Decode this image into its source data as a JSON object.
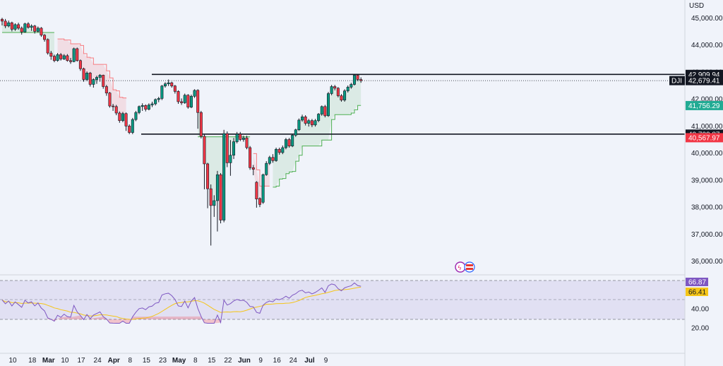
{
  "chart_data": {
    "type": "candlestick",
    "currency": "USD",
    "symbol": "DJI",
    "price_scale": {
      "ticks": [
        "45,000.00",
        "44,000.00",
        "43,000.00",
        "42,000.00",
        "41,000.00",
        "40,000.00",
        "39,000.00",
        "38,000.00",
        "37,000.00",
        "36,000.00"
      ],
      "tick_values": [
        45000,
        44000,
        43000,
        42000,
        41000,
        40000,
        39000,
        38000,
        37000,
        36000
      ],
      "range": [
        35600,
        45400
      ]
    },
    "time_axis": {
      "labels": [
        "10",
        "18",
        "Mar",
        "10",
        "17",
        "24",
        "Apr",
        "8",
        "15",
        "23",
        "May",
        "8",
        "15",
        "22",
        "Jun",
        "9",
        "16",
        "24",
        "Jul",
        "9"
      ],
      "bold": [
        "Mar",
        "Apr",
        "May",
        "Jun",
        "Jul"
      ],
      "bar_index": [
        0,
        6,
        11,
        16,
        21,
        26,
        31,
        36,
        41,
        46,
        51,
        56,
        61,
        66,
        71,
        76,
        81,
        86,
        91,
        96
      ]
    },
    "horizontal_levels": [
      {
        "value": 42909.94,
        "label": "42,909.94",
        "color": "#131722"
      },
      {
        "value": 40700.87,
        "label": "40,700.87",
        "color": "#131722"
      }
    ],
    "price_tags": [
      {
        "value": 42679.41,
        "label": "42,679.41",
        "name": "DJI",
        "color": "#131722"
      },
      {
        "value": 41756.29,
        "label": "41,756.29",
        "color": "#22ab94"
      },
      {
        "value": 40567.97,
        "label": "40,567.97",
        "color": "#f23645"
      }
    ],
    "candles": [
      [
        44950,
        44880,
        45000,
        44720
      ],
      [
        44880,
        44700,
        44960,
        44620
      ],
      [
        44700,
        44820,
        44900,
        44650
      ],
      [
        44820,
        44580,
        44860,
        44500
      ],
      [
        44580,
        44750,
        44800,
        44520
      ],
      [
        44750,
        44620,
        44820,
        44560
      ],
      [
        44620,
        44480,
        44680,
        44380
      ],
      [
        44480,
        44780,
        44820,
        44450
      ],
      [
        44780,
        44650,
        44840,
        44600
      ],
      [
        44650,
        44700,
        44760,
        44520
      ],
      [
        44700,
        44500,
        44740,
        44420
      ],
      [
        44500,
        44620,
        44680,
        44460
      ],
      [
        44620,
        44360,
        44660,
        44300
      ],
      [
        44360,
        44200,
        44400,
        44120
      ],
      [
        44200,
        43700,
        44240,
        43640
      ],
      [
        43700,
        43580,
        43780,
        43450
      ],
      [
        43580,
        43420,
        43640,
        43360
      ],
      [
        43420,
        43640,
        43700,
        43380
      ],
      [
        43640,
        43480,
        43700,
        43420
      ],
      [
        43480,
        43600,
        43660,
        43440
      ],
      [
        43600,
        43420,
        43660,
        43380
      ],
      [
        43420,
        43380,
        43520,
        43300
      ],
      [
        43380,
        43860,
        43900,
        43360
      ],
      [
        43860,
        43420,
        43900,
        43380
      ],
      [
        43420,
        43120,
        43460,
        43040
      ],
      [
        43120,
        42720,
        43160,
        42640
      ],
      [
        42720,
        42960,
        43020,
        42660
      ],
      [
        42960,
        42540,
        43000,
        42460
      ],
      [
        42540,
        42720,
        42760,
        42420
      ],
      [
        42720,
        42800,
        42860,
        42560
      ],
      [
        42800,
        42880,
        42920,
        42640
      ],
      [
        42880,
        42460,
        42900,
        42380
      ],
      [
        42460,
        42220,
        42520,
        42120
      ],
      [
        42220,
        41740,
        42260,
        41680
      ],
      [
        41740,
        41720,
        41820,
        41560
      ],
      [
        41720,
        41480,
        41780,
        41400
      ],
      [
        41480,
        41200,
        41540,
        41120
      ],
      [
        41200,
        41460,
        41520,
        41140
      ],
      [
        41460,
        41000,
        41500,
        40820
      ],
      [
        41000,
        40760,
        41060,
        40700
      ],
      [
        40760,
        41240,
        41300,
        40700
      ],
      [
        41240,
        41500,
        41560,
        41180
      ],
      [
        41500,
        41720,
        41760,
        41440
      ],
      [
        41720,
        41760,
        41840,
        41560
      ],
      [
        41760,
        41620,
        41800,
        41540
      ],
      [
        41620,
        41780,
        41840,
        41580
      ],
      [
        41780,
        41820,
        41900,
        41700
      ],
      [
        41820,
        41980,
        42020,
        41760
      ],
      [
        41980,
        42020,
        42080,
        41880
      ],
      [
        42020,
        42480,
        42520,
        41960
      ],
      [
        42480,
        42560,
        42620,
        42420
      ],
      [
        42560,
        42600,
        42720,
        42480
      ],
      [
        42600,
        42480,
        42640,
        42420
      ],
      [
        42480,
        42280,
        42520,
        42200
      ],
      [
        42280,
        41900,
        42320,
        41820
      ],
      [
        41900,
        41860,
        42020,
        41780
      ],
      [
        41860,
        42140,
        42200,
        41820
      ],
      [
        42140,
        41700,
        42180,
        41640
      ],
      [
        41700,
        42100,
        42160,
        41660
      ],
      [
        42100,
        42320,
        42360,
        42040
      ],
      [
        42320,
        41500,
        42360,
        40900
      ],
      [
        41500,
        40620,
        41560,
        40540
      ],
      [
        40620,
        39600,
        40680,
        38660
      ],
      [
        39600,
        38680,
        39640,
        37960
      ],
      [
        38680,
        38060,
        38840,
        36580
      ],
      [
        38060,
        38240,
        38440,
        37640
      ],
      [
        38240,
        39200,
        39340,
        37100
      ],
      [
        39200,
        37520,
        39260,
        37400
      ],
      [
        37520,
        40720,
        40860,
        37440
      ],
      [
        40720,
        39640,
        40800,
        39480
      ],
      [
        39640,
        39920,
        40480,
        39160
      ],
      [
        39920,
        40420,
        40560,
        39780
      ],
      [
        40420,
        40700,
        40780,
        40360
      ],
      [
        40700,
        40500,
        40780,
        40440
      ],
      [
        40500,
        40560,
        40640,
        40420
      ],
      [
        40560,
        40200,
        40640,
        40140
      ],
      [
        40200,
        39460,
        40260,
        39380
      ],
      [
        39460,
        39400,
        39560,
        39180
      ],
      [
        38920,
        38300,
        38960,
        37980
      ],
      [
        38320,
        38100,
        38360,
        38000
      ],
      [
        38180,
        39200,
        39240,
        38120
      ],
      [
        39200,
        39620,
        39700,
        39160
      ],
      [
        39620,
        39840,
        39900,
        39560
      ],
      [
        39840,
        39720,
        39960,
        39640
      ],
      [
        39720,
        40140,
        40200,
        39680
      ],
      [
        40140,
        40020,
        40200,
        39940
      ],
      [
        40020,
        40200,
        40280,
        39960
      ],
      [
        40200,
        40500,
        40560,
        40140
      ],
      [
        40500,
        40260,
        40560,
        40200
      ],
      [
        40260,
        40660,
        40700,
        40220
      ],
      [
        40660,
        40860,
        40900,
        40600
      ],
      [
        40860,
        41220,
        41280,
        40820
      ],
      [
        41220,
        41340,
        41420,
        41160
      ],
      [
        41340,
        41100,
        41400,
        41020
      ],
      [
        41100,
        41200,
        41260,
        40980
      ],
      [
        41200,
        41040,
        41260,
        40960
      ],
      [
        41040,
        41200,
        41260,
        40980
      ],
      [
        41200,
        41440,
        41480,
        41140
      ],
      [
        41440,
        41720,
        41760,
        41380
      ],
      [
        41720,
        41380,
        41780,
        41320
      ],
      [
        41380,
        42200,
        42260,
        41340
      ],
      [
        42200,
        42460,
        42520,
        42140
      ],
      [
        42460,
        42400,
        42520,
        42320
      ],
      [
        42400,
        42120,
        42440,
        42060
      ],
      [
        42120,
        41960,
        42180,
        41900
      ],
      [
        41960,
        42300,
        42360,
        41900
      ],
      [
        42300,
        42440,
        42500,
        42240
      ],
      [
        42440,
        42540,
        42600,
        42380
      ],
      [
        42540,
        42880,
        42920,
        42500
      ],
      [
        42880,
        42720,
        42920,
        42660
      ],
      [
        42720,
        42679.41,
        42800,
        42600
      ]
    ],
    "rsi": {
      "levels": [
        "66.87",
        "66.41",
        "40.00",
        "20.00"
      ],
      "last": 66.87,
      "ma_last": 66.41
    }
  }
}
